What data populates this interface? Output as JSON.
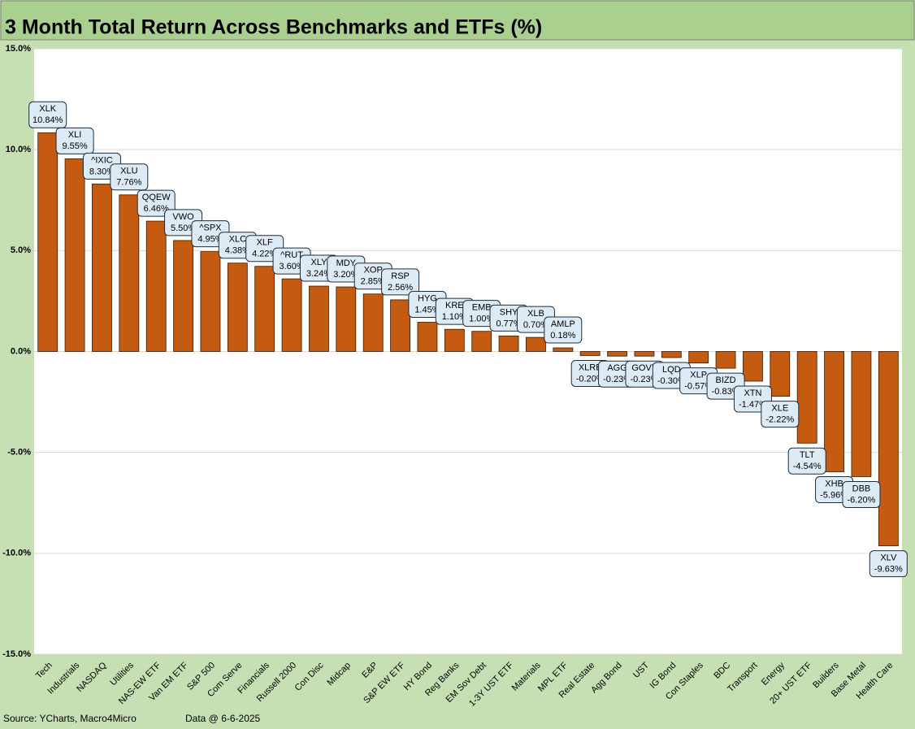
{
  "chart_data": {
    "type": "bar",
    "title": "3 Month Total Return Across Benchmarks and ETFs (%)",
    "source": "Source: YCharts, Macro4Micro",
    "data_date": "Data @ 6-6-2025",
    "categories": [
      "Tech",
      "Industrials",
      "NASDAQ",
      "Utilities",
      "NAS-EW ETF",
      "Van EM ETF",
      "S&P 500",
      "Com Serve",
      "Financials",
      "Russell 2000",
      "Con Disc",
      "Midcap",
      "E&P",
      "S&P EW ETF",
      "HY Bond",
      "Reg Banks",
      "EM Sov Debt",
      "1-3Y UST ETF",
      "Materials",
      "MPL ETF",
      "Real Estate",
      "Agg Bond",
      "UST",
      "IG Bond",
      "Con Staples",
      "BDC",
      "Transport",
      "Energy",
      "20+ UST ETF",
      "Builders",
      "Base Metal",
      "Health Care"
    ],
    "tickers": [
      "XLK",
      "XLI",
      "^IXIC",
      "XLU",
      "QQEW",
      "VWO",
      "^SPX",
      "XLC",
      "XLF",
      "^RUT",
      "XLY",
      "MDY",
      "XOP",
      "RSP",
      "HYG",
      "KRE",
      "EMB",
      "SHY",
      "XLB",
      "AMLP",
      "XLRE",
      "AGG",
      "GOVT",
      "LQD",
      "XLP",
      "BIZD",
      "XTN",
      "XLE",
      "TLT",
      "XHB",
      "DBB",
      "XLV"
    ],
    "values": [
      10.84,
      9.55,
      8.3,
      7.76,
      6.46,
      5.5,
      4.95,
      4.38,
      4.22,
      3.6,
      3.24,
      3.2,
      2.85,
      2.56,
      1.45,
      1.1,
      1.0,
      0.77,
      0.7,
      0.18,
      -0.2,
      -0.23,
      -0.23,
      -0.3,
      -0.57,
      -0.83,
      -1.47,
      -2.22,
      -4.54,
      -5.96,
      -6.2,
      -9.63
    ],
    "value_labels": [
      "10.84%",
      "9.55%",
      "8.30%",
      "7.76%",
      "6.46%",
      "5.50%",
      "4.95%",
      "4.38%",
      "4.22%",
      "3.60%",
      "3.24%",
      "3.20%",
      "2.85%",
      "2.56%",
      "1.45%",
      "1.10%",
      "1.00%",
      "0.77%",
      "0.70%",
      "0.18%",
      "-0.20%",
      "-0.23%",
      "-0.23%",
      "-0.30%",
      "-0.57%",
      "-0.83%",
      "-1.47%",
      "-2.22%",
      "-4.54%",
      "-5.96%",
      "-6.20%",
      "-9.63%"
    ],
    "color": "#c55a11",
    "ylim": [
      -15,
      15
    ],
    "yticks": [
      {
        "value": -15,
        "label": "-15.0%"
      },
      {
        "value": -10,
        "label": "-10.0%"
      },
      {
        "value": -5,
        "label": "-5.0%"
      },
      {
        "value": 0,
        "label": "0.0%"
      },
      {
        "value": 5,
        "label": "5.0%"
      },
      {
        "value": 10,
        "label": "10.0%"
      },
      {
        "value": 15,
        "label": "15.0%"
      }
    ],
    "grid": true
  }
}
